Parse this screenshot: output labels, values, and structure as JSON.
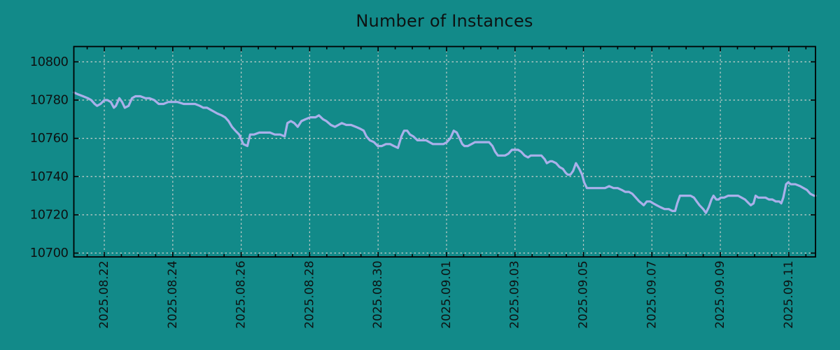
{
  "chart_data": {
    "type": "line",
    "title": "Number of Instances",
    "x_axis": {
      "unit": "date",
      "tick_labels": [
        "2025.08.22",
        "2025.08.24",
        "2025.08.26",
        "2025.08.28",
        "2025.08.30",
        "2025.09.01",
        "2025.09.03",
        "2025.09.05",
        "2025.09.07",
        "2025.09.09",
        "2025.09.11"
      ],
      "tick_days": [
        0,
        2,
        4,
        6,
        8,
        10,
        12,
        14,
        16,
        18,
        20
      ],
      "minor_tick_interval_days": 0.5,
      "xlim_days": [
        -0.89,
        20.78
      ]
    },
    "y_axis": {
      "ticks": [
        10700,
        10720,
        10740,
        10760,
        10780,
        10800
      ],
      "ylim": [
        10698,
        10808
      ]
    },
    "grid": {
      "style": "dashed",
      "on": true
    },
    "legend": {
      "visible": false
    },
    "colors": {
      "background": "#128a89",
      "line": "#aab0ea",
      "grid": "#c9cfcb",
      "axis": "#000000",
      "text": "#0d1212"
    },
    "series": [
      {
        "name": "Number of Instances",
        "points": [
          [
            -0.89,
            10784
          ],
          [
            -0.77,
            10783
          ],
          [
            -0.62,
            10782
          ],
          [
            -0.48,
            10781
          ],
          [
            -0.38,
            10780
          ],
          [
            -0.28,
            10778
          ],
          [
            -0.21,
            10777
          ],
          [
            -0.11,
            10778
          ],
          [
            0,
            10780
          ],
          [
            0.09,
            10780
          ],
          [
            0.19,
            10779
          ],
          [
            0.28,
            10776
          ],
          [
            0.34,
            10777
          ],
          [
            0.44,
            10781
          ],
          [
            0.52,
            10779
          ],
          [
            0.6,
            10776
          ],
          [
            0.71,
            10777
          ],
          [
            0.81,
            10781
          ],
          [
            0.91,
            10782
          ],
          [
            1.05,
            10782
          ],
          [
            1.2,
            10781
          ],
          [
            1.32,
            10781
          ],
          [
            1.46,
            10780
          ],
          [
            1.59,
            10778
          ],
          [
            1.73,
            10778
          ],
          [
            1.87,
            10779
          ],
          [
            2,
            10779
          ],
          [
            2.14,
            10779
          ],
          [
            2.32,
            10778
          ],
          [
            2.51,
            10778
          ],
          [
            2.65,
            10778
          ],
          [
            2.79,
            10777
          ],
          [
            2.89,
            10776
          ],
          [
            3,
            10776
          ],
          [
            3.1,
            10775
          ],
          [
            3.2,
            10774
          ],
          [
            3.3,
            10773
          ],
          [
            3.43,
            10772
          ],
          [
            3.53,
            10771
          ],
          [
            3.63,
            10769
          ],
          [
            3.73,
            10766
          ],
          [
            3.83,
            10764
          ],
          [
            3.94,
            10762
          ],
          [
            4.06,
            10757
          ],
          [
            4.18,
            10756
          ],
          [
            4.26,
            10762
          ],
          [
            4.37,
            10762
          ],
          [
            4.53,
            10763
          ],
          [
            4.67,
            10763
          ],
          [
            4.84,
            10763
          ],
          [
            4.98,
            10762
          ],
          [
            5.14,
            10762
          ],
          [
            5.27,
            10761
          ],
          [
            5.35,
            10768
          ],
          [
            5.45,
            10769
          ],
          [
            5.55,
            10768
          ],
          [
            5.65,
            10766
          ],
          [
            5.76,
            10769
          ],
          [
            5.88,
            10770
          ],
          [
            6.02,
            10771
          ],
          [
            6.17,
            10771
          ],
          [
            6.27,
            10772
          ],
          [
            6.39,
            10770
          ],
          [
            6.49,
            10769
          ],
          [
            6.62,
            10767
          ],
          [
            6.74,
            10766
          ],
          [
            6.84,
            10767
          ],
          [
            6.94,
            10768
          ],
          [
            7.07,
            10767
          ],
          [
            7.21,
            10767
          ],
          [
            7.35,
            10766
          ],
          [
            7.48,
            10765
          ],
          [
            7.58,
            10764
          ],
          [
            7.66,
            10761
          ],
          [
            7.76,
            10759
          ],
          [
            7.88,
            10758
          ],
          [
            7.99,
            10756
          ],
          [
            8.11,
            10756
          ],
          [
            8.23,
            10757
          ],
          [
            8.35,
            10757
          ],
          [
            8.46,
            10756
          ],
          [
            8.58,
            10755
          ],
          [
            8.68,
            10761
          ],
          [
            8.76,
            10764
          ],
          [
            8.85,
            10764
          ],
          [
            8.93,
            10762
          ],
          [
            9.03,
            10761
          ],
          [
            9.15,
            10759
          ],
          [
            9.27,
            10759
          ],
          [
            9.4,
            10759
          ],
          [
            9.5,
            10758
          ],
          [
            9.6,
            10757
          ],
          [
            9.7,
            10757
          ],
          [
            9.81,
            10757
          ],
          [
            9.91,
            10757
          ],
          [
            10.01,
            10758
          ],
          [
            10.11,
            10760
          ],
          [
            10.21,
            10764
          ],
          [
            10.3,
            10763
          ],
          [
            10.38,
            10760
          ],
          [
            10.46,
            10757
          ],
          [
            10.52,
            10756
          ],
          [
            10.62,
            10756
          ],
          [
            10.73,
            10757
          ],
          [
            10.83,
            10758
          ],
          [
            10.95,
            10758
          ],
          [
            11.1,
            10758
          ],
          [
            11.24,
            10758
          ],
          [
            11.34,
            10756
          ],
          [
            11.42,
            10753
          ],
          [
            11.5,
            10751
          ],
          [
            11.61,
            10751
          ],
          [
            11.71,
            10751
          ],
          [
            11.81,
            10752
          ],
          [
            11.91,
            10754
          ],
          [
            11.99,
            10754
          ],
          [
            12.09,
            10754
          ],
          [
            12.18,
            10753
          ],
          [
            12.28,
            10751
          ],
          [
            12.38,
            10750
          ],
          [
            12.46,
            10751
          ],
          [
            12.57,
            10751
          ],
          [
            12.67,
            10751
          ],
          [
            12.77,
            10751
          ],
          [
            12.87,
            10749
          ],
          [
            12.93,
            10747
          ],
          [
            13.03,
            10748
          ],
          [
            13.09,
            10748
          ],
          [
            13.2,
            10747
          ],
          [
            13.3,
            10745
          ],
          [
            13.4,
            10744
          ],
          [
            13.48,
            10742
          ],
          [
            13.54,
            10741
          ],
          [
            13.62,
            10741
          ],
          [
            13.7,
            10743
          ],
          [
            13.78,
            10747
          ],
          [
            13.88,
            10744
          ],
          [
            13.96,
            10741
          ],
          [
            14.02,
            10737
          ],
          [
            14.1,
            10734
          ],
          [
            14.22,
            10734
          ],
          [
            14.34,
            10734
          ],
          [
            14.49,
            10734
          ],
          [
            14.63,
            10734
          ],
          [
            14.75,
            10735
          ],
          [
            14.88,
            10734
          ],
          [
            15,
            10734
          ],
          [
            15.12,
            10733
          ],
          [
            15.22,
            10732
          ],
          [
            15.33,
            10732
          ],
          [
            15.43,
            10731
          ],
          [
            15.53,
            10729
          ],
          [
            15.63,
            10727
          ],
          [
            15.7,
            10726
          ],
          [
            15.76,
            10725
          ],
          [
            15.85,
            10727
          ],
          [
            15.95,
            10727
          ],
          [
            16.04,
            10726
          ],
          [
            16.14,
            10725
          ],
          [
            16.25,
            10724
          ],
          [
            16.37,
            10723
          ],
          [
            16.49,
            10723
          ],
          [
            16.6,
            10722
          ],
          [
            16.68,
            10722
          ],
          [
            16.74,
            10726
          ],
          [
            16.82,
            10730
          ],
          [
            16.92,
            10730
          ],
          [
            17.03,
            10730
          ],
          [
            17.13,
            10730
          ],
          [
            17.23,
            10729
          ],
          [
            17.31,
            10727
          ],
          [
            17.39,
            10725
          ],
          [
            17.5,
            10723
          ],
          [
            17.58,
            10721
          ],
          [
            17.66,
            10724
          ],
          [
            17.74,
            10728
          ],
          [
            17.8,
            10730
          ],
          [
            17.88,
            10728
          ],
          [
            17.95,
            10728
          ],
          [
            18.01,
            10729
          ],
          [
            18.11,
            10729
          ],
          [
            18.23,
            10730
          ],
          [
            18.38,
            10730
          ],
          [
            18.52,
            10730
          ],
          [
            18.62,
            10729
          ],
          [
            18.72,
            10728
          ],
          [
            18.83,
            10726
          ],
          [
            18.89,
            10725
          ],
          [
            18.97,
            10726
          ],
          [
            19.03,
            10730
          ],
          [
            19.11,
            10729
          ],
          [
            19.21,
            10729
          ],
          [
            19.32,
            10729
          ],
          [
            19.42,
            10728
          ],
          [
            19.52,
            10728
          ],
          [
            19.62,
            10727
          ],
          [
            19.72,
            10727
          ],
          [
            19.78,
            10726
          ],
          [
            19.84,
            10729
          ],
          [
            19.92,
            10736
          ],
          [
            19.98,
            10737
          ],
          [
            20.06,
            10736
          ],
          [
            20.19,
            10736
          ],
          [
            20.33,
            10735
          ],
          [
            20.43,
            10734
          ],
          [
            20.53,
            10733
          ],
          [
            20.63,
            10731
          ],
          [
            20.74,
            10730
          ],
          [
            20.78,
            10730
          ]
        ]
      }
    ]
  }
}
